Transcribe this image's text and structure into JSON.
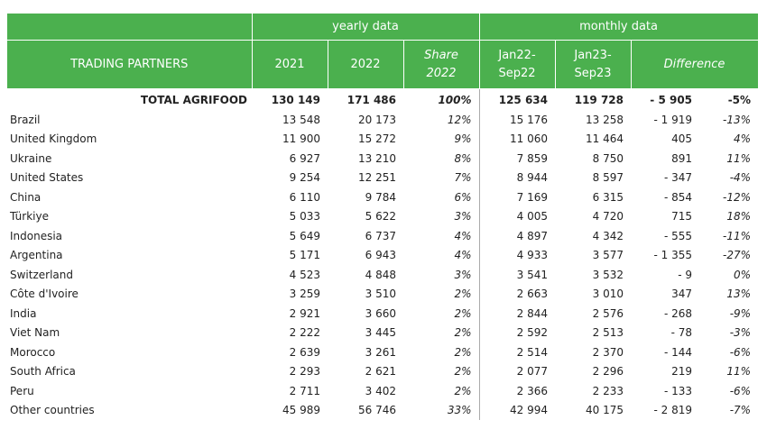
{
  "header": {
    "yearly_group": "yearly data",
    "monthly_group": "monthly data",
    "col_partners": "TRADING PARTNERS",
    "col_2021": "2021",
    "col_2022": "2022",
    "col_share_1": "Share",
    "col_share_2": "2022",
    "col_jan22_1": "Jan22-",
    "col_jan22_2": "Sep22",
    "col_jan23_1": "Jan23-",
    "col_jan23_2": "Sep23",
    "col_difference": "Difference"
  },
  "total": {
    "name": "TOTAL AGRIFOOD",
    "y2021": "130 149",
    "y2022": "171 486",
    "share": "100%",
    "m22": "125 634",
    "m23": "119 728",
    "diff": "- 5 905",
    "diffpct": "-5%"
  },
  "rows": [
    {
      "name": "Brazil",
      "y2021": "13 548",
      "y2022": "20 173",
      "share": "12%",
      "m22": "15 176",
      "m23": "13 258",
      "diff": "- 1 919",
      "diffpct": "-13%"
    },
    {
      "name": "United Kingdom",
      "y2021": "11 900",
      "y2022": "15 272",
      "share": "9%",
      "m22": "11 060",
      "m23": "11 464",
      "diff": "405",
      "diffpct": "4%"
    },
    {
      "name": "Ukraine",
      "y2021": "6 927",
      "y2022": "13 210",
      "share": "8%",
      "m22": "7 859",
      "m23": "8 750",
      "diff": "891",
      "diffpct": "11%"
    },
    {
      "name": "United States",
      "y2021": "9 254",
      "y2022": "12 251",
      "share": "7%",
      "m22": "8 944",
      "m23": "8 597",
      "diff": "- 347",
      "diffpct": "-4%"
    },
    {
      "name": "China",
      "y2021": "6 110",
      "y2022": "9 784",
      "share": "6%",
      "m22": "7 169",
      "m23": "6 315",
      "diff": "- 854",
      "diffpct": "-12%"
    },
    {
      "name": "Türkiye",
      "y2021": "5 033",
      "y2022": "5 622",
      "share": "3%",
      "m22": "4 005",
      "m23": "4 720",
      "diff": "715",
      "diffpct": "18%"
    },
    {
      "name": "Indonesia",
      "y2021": "5 649",
      "y2022": "6 737",
      "share": "4%",
      "m22": "4 897",
      "m23": "4 342",
      "diff": "- 555",
      "diffpct": "-11%"
    },
    {
      "name": "Argentina",
      "y2021": "5 171",
      "y2022": "6 943",
      "share": "4%",
      "m22": "4 933",
      "m23": "3 577",
      "diff": "- 1 355",
      "diffpct": "-27%"
    },
    {
      "name": "Switzerland",
      "y2021": "4 523",
      "y2022": "4 848",
      "share": "3%",
      "m22": "3 541",
      "m23": "3 532",
      "diff": "- 9",
      "diffpct": "0%"
    },
    {
      "name": "Côte d'Ivoire",
      "y2021": "3 259",
      "y2022": "3 510",
      "share": "2%",
      "m22": "2 663",
      "m23": "3 010",
      "diff": "347",
      "diffpct": "13%"
    },
    {
      "name": "India",
      "y2021": "2 921",
      "y2022": "3 660",
      "share": "2%",
      "m22": "2 844",
      "m23": "2 576",
      "diff": "- 268",
      "diffpct": "-9%"
    },
    {
      "name": "Viet Nam",
      "y2021": "2 222",
      "y2022": "3 445",
      "share": "2%",
      "m22": "2 592",
      "m23": "2 513",
      "diff": "- 78",
      "diffpct": "-3%"
    },
    {
      "name": "Morocco",
      "y2021": "2 639",
      "y2022": "3 261",
      "share": "2%",
      "m22": "2 514",
      "m23": "2 370",
      "diff": "- 144",
      "diffpct": "-6%"
    },
    {
      "name": "South Africa",
      "y2021": "2 293",
      "y2022": "2 621",
      "share": "2%",
      "m22": "2 077",
      "m23": "2 296",
      "diff": "219",
      "diffpct": "11%"
    },
    {
      "name": "Peru",
      "y2021": "2 711",
      "y2022": "3 402",
      "share": "2%",
      "m22": "2 366",
      "m23": "2 233",
      "diff": "- 133",
      "diffpct": "-6%"
    },
    {
      "name": "Other countries",
      "y2021": "45 989",
      "y2022": "56 746",
      "share": "33%",
      "m22": "42 994",
      "m23": "40 175",
      "diff": "- 2 819",
      "diffpct": "-7%"
    }
  ]
}
